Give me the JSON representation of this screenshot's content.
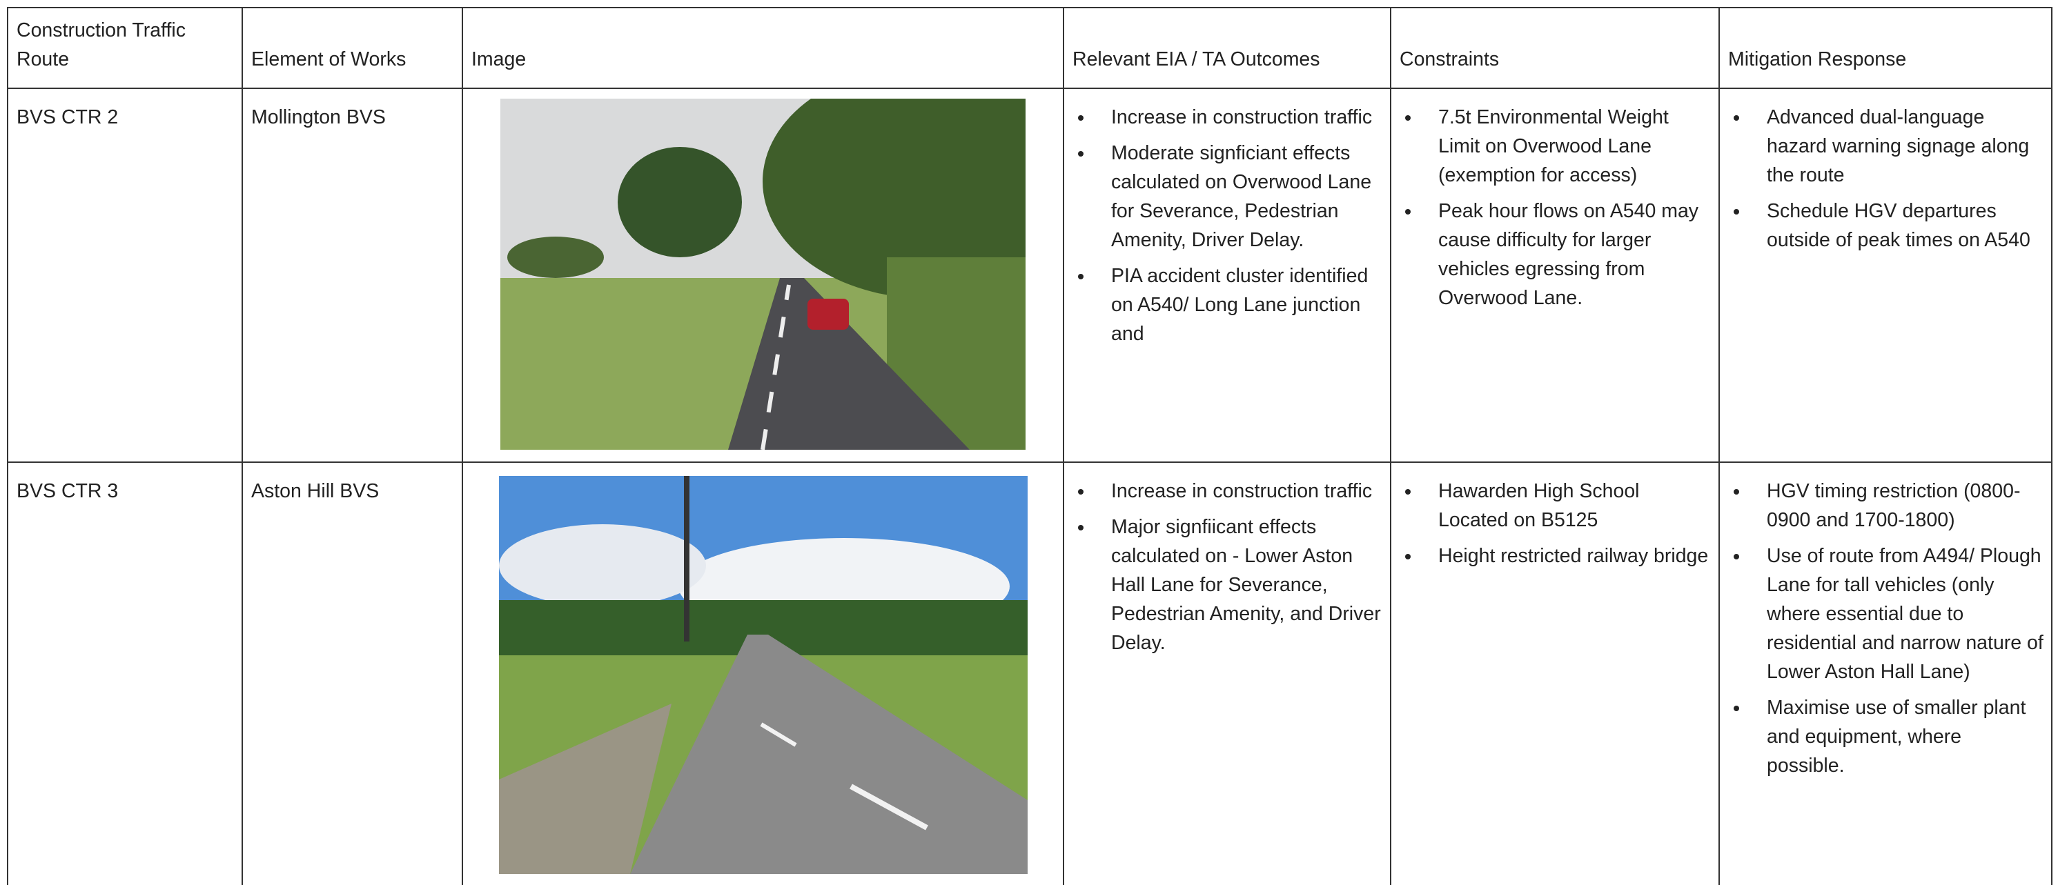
{
  "table": {
    "headers": [
      "Construction Traffic Route",
      "Element of Works",
      "Image",
      "Relevant EIA / TA Outcomes",
      "Constraints",
      "Mitigation Response"
    ],
    "rows": [
      {
        "route": "BVS CTR 2",
        "element": "Mollington BVS",
        "outcomes": [
          "Increase in construction traffic",
          "Moderate signficiant effects calculated on Overwood Lane for Severance, Pedestrian Amenity, Driver Delay.",
          "PIA accident cluster identified on A540/ Long Lane junction and"
        ],
        "constraints": [
          "7.5t Environmental Weight Limit on Overwood Lane (exemption for access)",
          "Peak hour flows on A540 may cause difficulty for larger vehicles egressing from Overwood Lane."
        ],
        "mitigation": [
          "Advanced dual-language hazard warning signage along the route",
          "Schedule HGV departures outside of peak times on A540"
        ]
      },
      {
        "route": "BVS CTR 3",
        "element": "Aston Hill BVS",
        "outcomes": [
          "Increase in construction traffic",
          "Major signfiicant effects calculated on - Lower Aston Hall Lane for Severance, Pedestrian Amenity, and Driver Delay."
        ],
        "constraints": [
          "Hawarden High School Located on B5125",
          "Height restricted railway bridge"
        ],
        "mitigation": [
          "HGV timing restriction (0800-0900 and 1700-1800)",
          "Use of route from A494/ Plough Lane for tall vehicles (only where essential due to residential and narrow nature of Lower Aston Hall Lane)",
          "Maximise use of smaller plant and equipment, where possible."
        ]
      }
    ]
  }
}
